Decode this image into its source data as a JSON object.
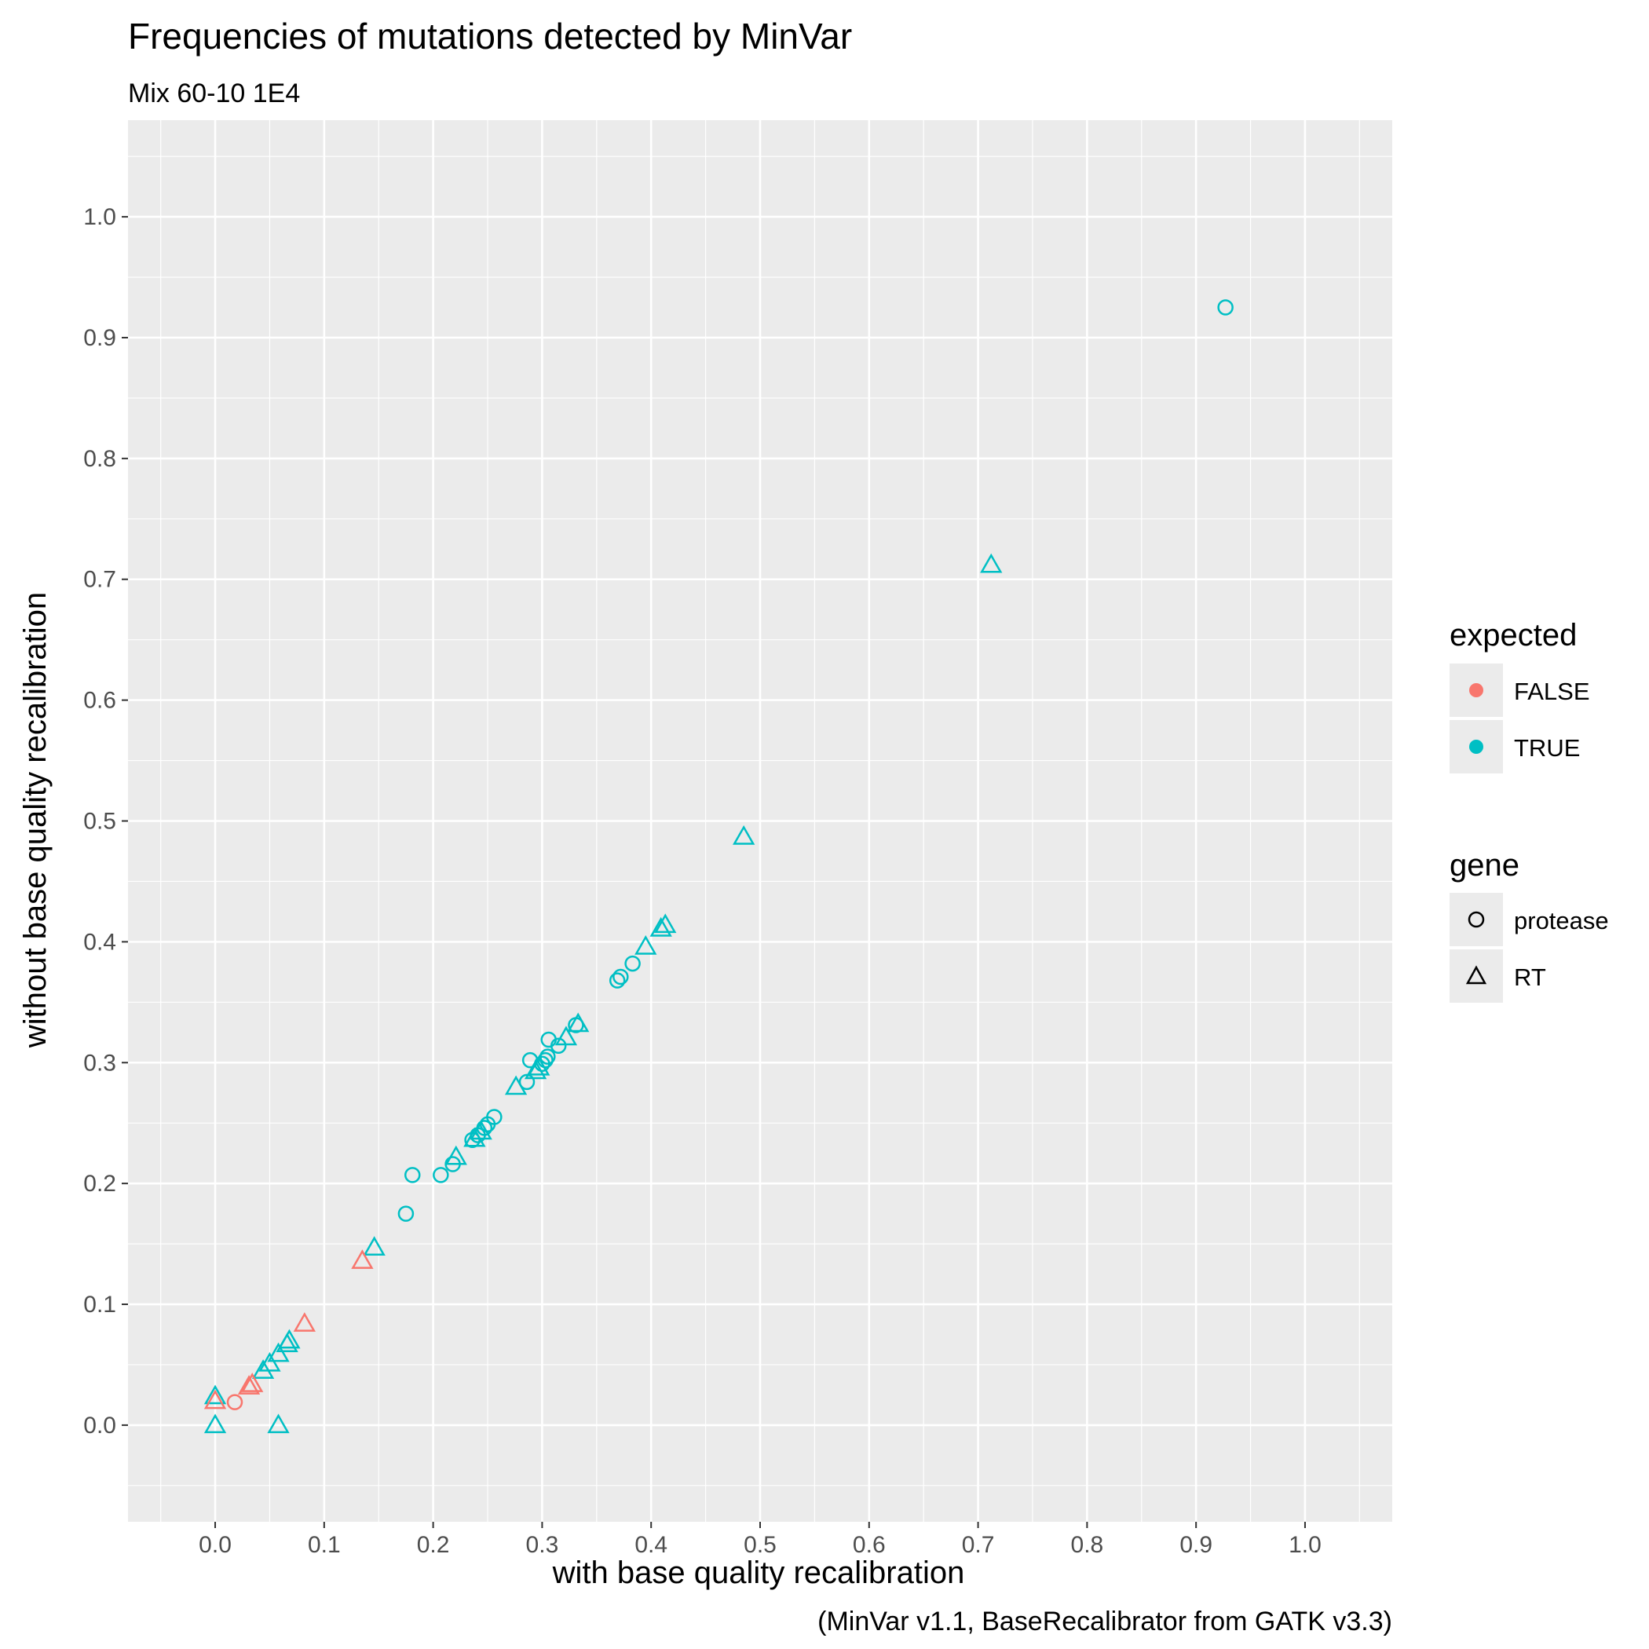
{
  "chart_data": {
    "type": "scatter",
    "title": "Frequencies of mutations detected by MinVar",
    "subtitle": "Mix 60-10 1E4",
    "xlabel": "with base quality recalibration",
    "ylabel": "without base quality recalibration",
    "caption": "(MinVar v1.1, BaseRecalibrator from GATK v3.3)",
    "xlim": [
      -0.08,
      1.08
    ],
    "ylim": [
      -0.08,
      1.08
    ],
    "x_ticks": [
      "0.0",
      "0.1",
      "0.2",
      "0.3",
      "0.4",
      "0.5",
      "0.6",
      "0.7",
      "0.8",
      "0.9",
      "1.0"
    ],
    "y_ticks": [
      "0.0",
      "0.1",
      "0.2",
      "0.3",
      "0.4",
      "0.5",
      "0.6",
      "0.7",
      "0.8",
      "0.9",
      "1.0"
    ],
    "grid": true,
    "legend_position": "right",
    "colors": {
      "FALSE": "#F8766D",
      "TRUE": "#00BFC4"
    },
    "legends": [
      {
        "title": "expected",
        "entries": [
          {
            "label": "FALSE",
            "color": "#F8766D"
          },
          {
            "label": "TRUE",
            "color": "#00BFC4"
          }
        ]
      },
      {
        "title": "gene",
        "entries": [
          {
            "label": "protease",
            "shape": "circle"
          },
          {
            "label": "RT",
            "shape": "triangle"
          }
        ]
      }
    ],
    "points": [
      {
        "x": 0.927,
        "y": 0.925,
        "expected": "TRUE",
        "gene": "protease"
      },
      {
        "x": 0.712,
        "y": 0.712,
        "expected": "TRUE",
        "gene": "RT"
      },
      {
        "x": 0.485,
        "y": 0.487,
        "expected": "TRUE",
        "gene": "RT"
      },
      {
        "x": 0.413,
        "y": 0.414,
        "expected": "TRUE",
        "gene": "RT"
      },
      {
        "x": 0.409,
        "y": 0.411,
        "expected": "TRUE",
        "gene": "RT"
      },
      {
        "x": 0.395,
        "y": 0.396,
        "expected": "TRUE",
        "gene": "RT"
      },
      {
        "x": 0.383,
        "y": 0.382,
        "expected": "TRUE",
        "gene": "protease"
      },
      {
        "x": 0.372,
        "y": 0.371,
        "expected": "TRUE",
        "gene": "protease"
      },
      {
        "x": 0.369,
        "y": 0.368,
        "expected": "TRUE",
        "gene": "protease"
      },
      {
        "x": 0.333,
        "y": 0.332,
        "expected": "TRUE",
        "gene": "RT"
      },
      {
        "x": 0.331,
        "y": 0.331,
        "expected": "TRUE",
        "gene": "protease"
      },
      {
        "x": 0.322,
        "y": 0.321,
        "expected": "TRUE",
        "gene": "RT"
      },
      {
        "x": 0.306,
        "y": 0.319,
        "expected": "TRUE",
        "gene": "protease"
      },
      {
        "x": 0.315,
        "y": 0.314,
        "expected": "TRUE",
        "gene": "protease"
      },
      {
        "x": 0.289,
        "y": 0.302,
        "expected": "TRUE",
        "gene": "protease"
      },
      {
        "x": 0.305,
        "y": 0.305,
        "expected": "TRUE",
        "gene": "protease"
      },
      {
        "x": 0.303,
        "y": 0.302,
        "expected": "TRUE",
        "gene": "protease"
      },
      {
        "x": 0.3,
        "y": 0.299,
        "expected": "TRUE",
        "gene": "protease"
      },
      {
        "x": 0.297,
        "y": 0.296,
        "expected": "TRUE",
        "gene": "RT"
      },
      {
        "x": 0.294,
        "y": 0.293,
        "expected": "TRUE",
        "gene": "RT"
      },
      {
        "x": 0.286,
        "y": 0.284,
        "expected": "TRUE",
        "gene": "protease"
      },
      {
        "x": 0.276,
        "y": 0.28,
        "expected": "TRUE",
        "gene": "RT"
      },
      {
        "x": 0.256,
        "y": 0.255,
        "expected": "TRUE",
        "gene": "protease"
      },
      {
        "x": 0.25,
        "y": 0.249,
        "expected": "TRUE",
        "gene": "protease"
      },
      {
        "x": 0.247,
        "y": 0.246,
        "expected": "TRUE",
        "gene": "protease"
      },
      {
        "x": 0.244,
        "y": 0.243,
        "expected": "TRUE",
        "gene": "RT"
      },
      {
        "x": 0.241,
        "y": 0.24,
        "expected": "TRUE",
        "gene": "protease"
      },
      {
        "x": 0.238,
        "y": 0.237,
        "expected": "TRUE",
        "gene": "RT"
      },
      {
        "x": 0.236,
        "y": 0.236,
        "expected": "TRUE",
        "gene": "protease"
      },
      {
        "x": 0.221,
        "y": 0.222,
        "expected": "TRUE",
        "gene": "RT"
      },
      {
        "x": 0.218,
        "y": 0.216,
        "expected": "TRUE",
        "gene": "protease"
      },
      {
        "x": 0.207,
        "y": 0.207,
        "expected": "TRUE",
        "gene": "protease"
      },
      {
        "x": 0.181,
        "y": 0.207,
        "expected": "TRUE",
        "gene": "protease"
      },
      {
        "x": 0.175,
        "y": 0.175,
        "expected": "TRUE",
        "gene": "protease"
      },
      {
        "x": 0.146,
        "y": 0.147,
        "expected": "TRUE",
        "gene": "RT"
      },
      {
        "x": 0.135,
        "y": 0.136,
        "expected": "FALSE",
        "gene": "RT"
      },
      {
        "x": 0.082,
        "y": 0.084,
        "expected": "FALSE",
        "gene": "RT"
      },
      {
        "x": 0.068,
        "y": 0.07,
        "expected": "TRUE",
        "gene": "RT"
      },
      {
        "x": 0.066,
        "y": 0.067,
        "expected": "TRUE",
        "gene": "RT"
      },
      {
        "x": 0.058,
        "y": 0.059,
        "expected": "TRUE",
        "gene": "RT"
      },
      {
        "x": 0.05,
        "y": 0.051,
        "expected": "TRUE",
        "gene": "RT"
      },
      {
        "x": 0.044,
        "y": 0.045,
        "expected": "TRUE",
        "gene": "RT"
      },
      {
        "x": 0.034,
        "y": 0.034,
        "expected": "FALSE",
        "gene": "RT"
      },
      {
        "x": 0.031,
        "y": 0.032,
        "expected": "FALSE",
        "gene": "RT"
      },
      {
        "x": 0.018,
        "y": 0.019,
        "expected": "FALSE",
        "gene": "protease"
      },
      {
        "x": 0.0,
        "y": 0.024,
        "expected": "TRUE",
        "gene": "RT"
      },
      {
        "x": 0.0,
        "y": 0.02,
        "expected": "FALSE",
        "gene": "RT"
      },
      {
        "x": 0.0,
        "y": 0.0,
        "expected": "TRUE",
        "gene": "RT"
      },
      {
        "x": 0.058,
        "y": 0.0,
        "expected": "TRUE",
        "gene": "RT"
      }
    ]
  }
}
